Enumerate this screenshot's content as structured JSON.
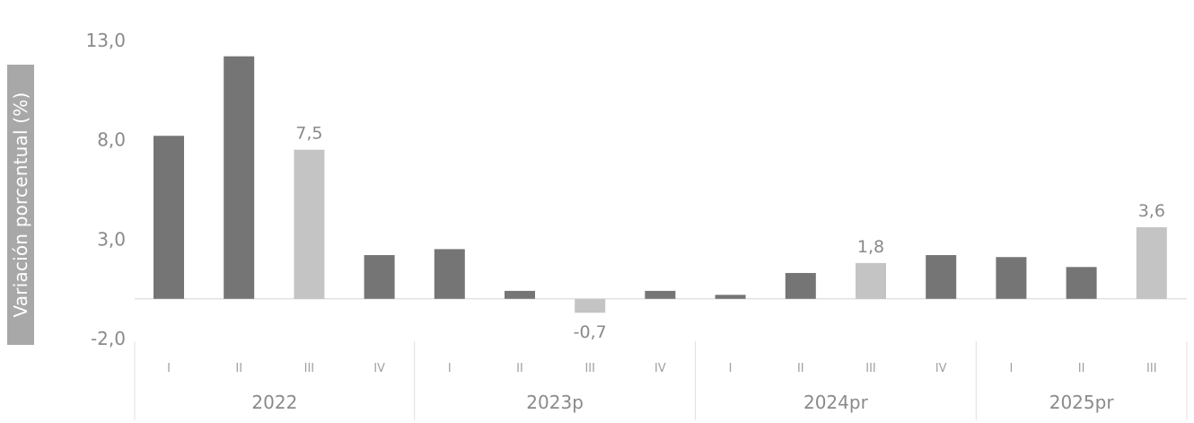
{
  "chart_data": {
    "type": "bar",
    "title": "",
    "xlabel": "",
    "ylabel": "Variación porcentual (%)",
    "ylim": [
      -2.0,
      13.0
    ],
    "yticks": [
      "13,0",
      "8,0",
      "3,0",
      "-2,0"
    ],
    "ytick_values": [
      13.0,
      8.0,
      3.0,
      -2.0
    ],
    "groups": [
      {
        "label": "2022",
        "quarters": [
          "I",
          "II",
          "III",
          "IV"
        ]
      },
      {
        "label": "2023p",
        "quarters": [
          "I",
          "II",
          "III",
          "IV"
        ]
      },
      {
        "label": "2024pr",
        "quarters": [
          "I",
          "II",
          "III",
          "IV"
        ]
      },
      {
        "label": "2025pr",
        "quarters": [
          "I",
          "II",
          "III"
        ]
      }
    ],
    "values": [
      8.2,
      12.2,
      7.5,
      2.2,
      2.5,
      0.4,
      -0.7,
      0.4,
      0.2,
      1.3,
      1.8,
      2.2,
      2.1,
      1.6,
      3.6
    ],
    "highlight": [
      false,
      false,
      true,
      false,
      false,
      false,
      true,
      false,
      false,
      false,
      true,
      false,
      false,
      false,
      true
    ],
    "data_labels": [
      "",
      "",
      "7,5",
      "",
      "",
      "",
      "-0,7",
      "",
      "",
      "",
      "1,8",
      "",
      "",
      "",
      "3,6"
    ],
    "colors": {
      "bar": "#757575",
      "highlight": "#c4c4c4",
      "axis": "#8a8a8a",
      "text": "#8a8a8a",
      "ylabel_bg": "#a8a8a8"
    },
    "grid": false,
    "legend": "none"
  }
}
